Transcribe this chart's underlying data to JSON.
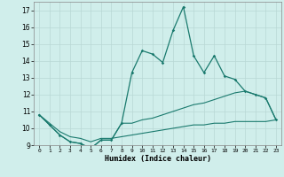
{
  "xlabel": "Humidex (Indice chaleur)",
  "x_values": [
    0,
    1,
    2,
    3,
    4,
    5,
    6,
    7,
    8,
    9,
    10,
    11,
    12,
    13,
    14,
    15,
    16,
    17,
    18,
    19,
    20,
    21,
    22,
    23
  ],
  "line1_y": [
    10.8,
    10.2,
    9.6,
    9.2,
    9.1,
    8.8,
    9.3,
    9.3,
    10.3,
    13.3,
    14.6,
    14.4,
    13.9,
    15.8,
    17.2,
    14.3,
    13.3,
    14.3,
    13.1,
    12.9,
    12.2,
    12.0,
    11.8,
    10.5
  ],
  "line2_y": [
    10.8,
    10.2,
    9.6,
    9.2,
    9.1,
    8.8,
    9.3,
    9.3,
    10.3,
    10.3,
    10.5,
    10.6,
    10.8,
    11.0,
    11.2,
    11.4,
    11.5,
    11.7,
    11.9,
    12.1,
    12.2,
    12.0,
    11.8,
    10.5
  ],
  "line3_y": [
    10.8,
    10.3,
    9.8,
    9.5,
    9.4,
    9.2,
    9.4,
    9.4,
    9.5,
    9.6,
    9.7,
    9.8,
    9.9,
    10.0,
    10.1,
    10.2,
    10.2,
    10.3,
    10.3,
    10.4,
    10.4,
    10.4,
    10.4,
    10.5
  ],
  "ylim": [
    9,
    17.5
  ],
  "yticks": [
    9,
    10,
    11,
    12,
    13,
    14,
    15,
    16,
    17
  ],
  "xticks": [
    0,
    1,
    2,
    3,
    4,
    5,
    6,
    7,
    8,
    9,
    10,
    11,
    12,
    13,
    14,
    15,
    16,
    17,
    18,
    19,
    20,
    21,
    22,
    23
  ],
  "line_color": "#1a7a6e",
  "bg_color": "#d0eeeb",
  "grid_color": "#b8d8d5"
}
